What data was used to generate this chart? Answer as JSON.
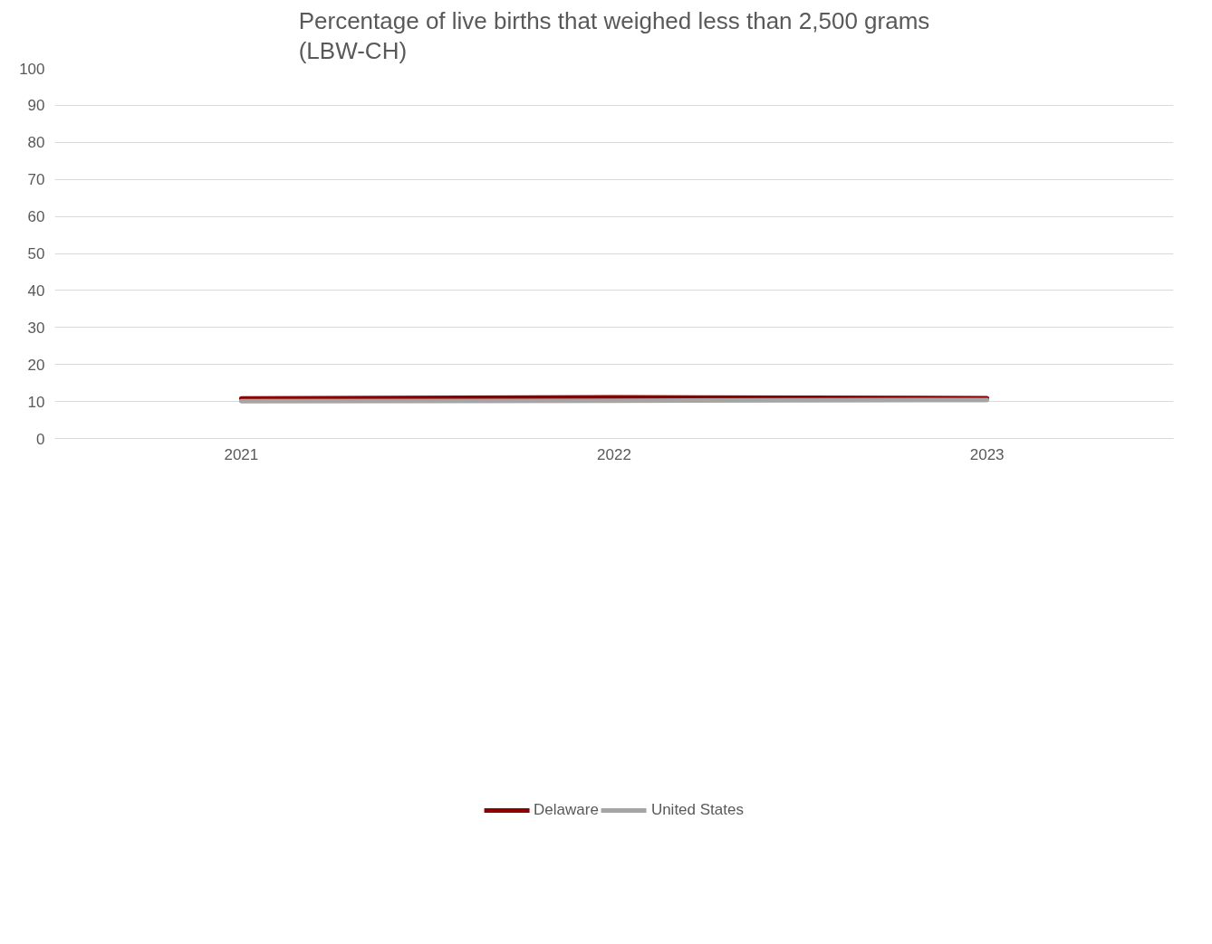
{
  "chart_data": {
    "type": "line",
    "title": "Percentage of live births that weighed less than 2,500 grams\n(LBW-CH)",
    "categories": [
      "2021",
      "2022",
      "2023"
    ],
    "series": [
      {
        "name": "Delaware",
        "color": "#8b0000",
        "values": [
          10.8,
          11.1,
          10.9
        ]
      },
      {
        "name": "United States",
        "color": "#a5a5a5",
        "values": [
          10.1,
          10.2,
          10.4
        ]
      }
    ],
    "ylim": [
      0,
      100
    ],
    "yticks": [
      0,
      10,
      20,
      30,
      40,
      50,
      60,
      70,
      80,
      90,
      100
    ],
    "grid": "y",
    "legend": "bottom",
    "marker": "none",
    "line_style": "solid"
  }
}
